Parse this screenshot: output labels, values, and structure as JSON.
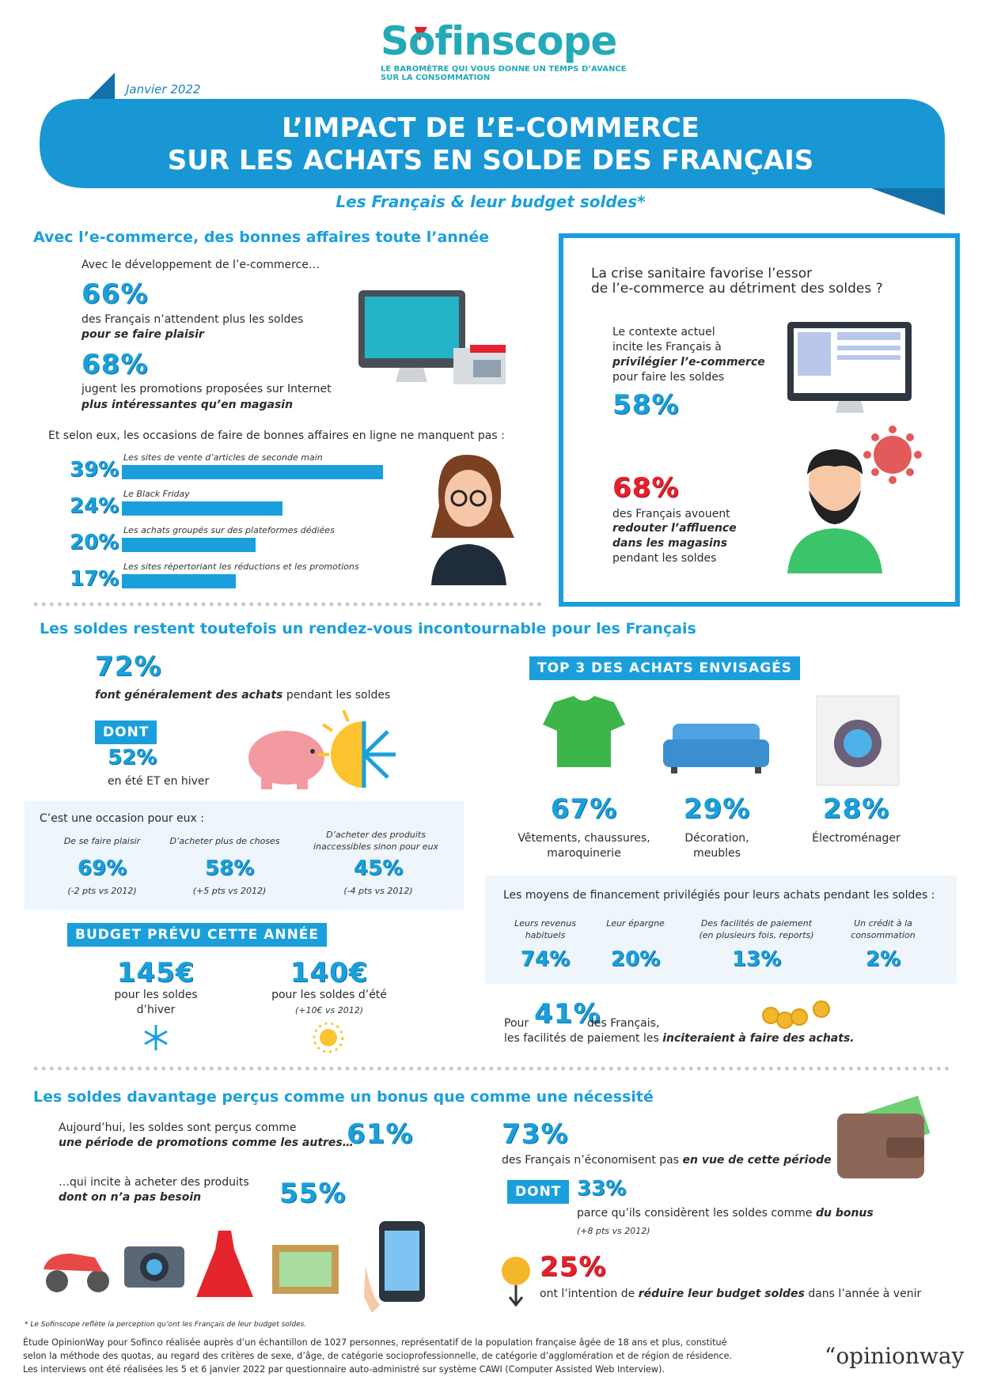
{
  "header": {
    "brand": "Sofinscope",
    "tagline": [
      "LE BAROMÈTRE QUI VOUS DONNE UN TEMPS D’AVANCE",
      "SUR LA CONSOMMATION"
    ],
    "date": "Janvier 2022",
    "title": [
      "L’IMPACT DE L’E-COMMERCE",
      "SUR LES ACHATS EN SOLDE DES FRANÇAIS"
    ],
    "subtitle": "Les Français & leur budget soldes*"
  },
  "section1": {
    "heading": "Avec l’e-commerce, des bonnes affaires toute l’année",
    "intro": "Avec le développement de l’e-commerce…",
    "stats": [
      {
        "value": "66%",
        "text": "des Français n’attendent plus les soldes",
        "emphasis": "pour se faire plaisir"
      },
      {
        "value": "68%",
        "text": "jugent les promotions proposées sur Internet",
        "emphasis": "plus intéressantes qu’en magasin"
      }
    ],
    "online_intro": "Et selon eux, les occasions de faire de bonnes affaires en ligne ne manquent pas :"
  },
  "chart_data": {
    "type": "bar",
    "orientation": "horizontal",
    "categories": [
      "Les sites de vente d’articles de seconde main",
      "Le Black Friday",
      "Les achats groupés sur des plateformes dédiées",
      "Les sites répertoriant les réductions et les promotions"
    ],
    "values": [
      39,
      24,
      20,
      17
    ],
    "value_labels": [
      "39%",
      "24%",
      "20%",
      "17%"
    ],
    "color": "#1a9fdc"
  },
  "box": {
    "title": [
      "La crise sanitaire favorise l’essor",
      "de l’e-commerce au détriment des soldes ?"
    ],
    "stat1": {
      "lines": [
        "Le contexte actuel",
        "incite les Français à"
      ],
      "emphasis": "privilégier l’e-commerce",
      "after": "pour faire les soldes",
      "value": "58%"
    },
    "stat2": {
      "value": "68%",
      "text": "des Français avouent",
      "emphasis": [
        "redouter l’affluence",
        "dans les magasins"
      ],
      "after": "pendant les soldes"
    }
  },
  "section2": {
    "heading": "Les soldes restent toutefois un rendez-vous incontournable pour les Français",
    "stat": {
      "value": "72%",
      "emphasis": "font généralement des achats",
      "text": "pendant les soldes"
    },
    "dont": {
      "label": "DONT",
      "value": "52%",
      "text": "en été ET en hiver"
    },
    "occasion": {
      "title": "C’est une occasion pour eux :",
      "items": [
        {
          "label": "De se faire plaisir",
          "value": "69%",
          "note": "(-2 pts vs 2012)"
        },
        {
          "label": "D’acheter plus de choses",
          "value": "58%",
          "note": "(+5 pts vs 2012)"
        },
        {
          "label": "D’acheter des produits inaccessibles sinon pour eux",
          "value": "45%",
          "note": "(-4 pts vs 2012)"
        }
      ]
    },
    "budget": {
      "title": "BUDGET PRÉVU CETTE ANNÉE",
      "items": [
        {
          "value": "145€",
          "label": [
            "pour les soldes",
            "d’hiver"
          ]
        },
        {
          "value": "140€",
          "label": [
            "pour les soldes d’été"
          ],
          "note": "(+10€ vs 2012)"
        }
      ]
    },
    "top3": {
      "title": "TOP 3 DES ACHATS ENVISAGÉS",
      "items": [
        {
          "value": "67%",
          "label": [
            "Vêtements, chaussures,",
            "maroquinerie"
          ]
        },
        {
          "value": "29%",
          "label": [
            "Décoration,",
            "meubles"
          ]
        },
        {
          "value": "28%",
          "label": [
            "Électroménager"
          ]
        }
      ]
    },
    "financing": {
      "title": "Les moyens de financement privilégiés pour leurs achats pendant les soldes :",
      "items": [
        {
          "label": [
            "Leurs revenus",
            "habituels"
          ],
          "value": "74%"
        },
        {
          "label": [
            "Leur épargne"
          ],
          "value": "20%"
        },
        {
          "label": [
            "Des facilités de paiement",
            "(en plusieurs fois, reports)"
          ],
          "value": "13%"
        },
        {
          "label": [
            "Un crédit à la",
            "consommation"
          ],
          "value": "2%"
        }
      ]
    },
    "payment": {
      "prefix": "Pour",
      "value": "41%",
      "text": "des Français,",
      "line2": "les facilités de paiement les",
      "emphasis": "inciteraient à faire des achats."
    }
  },
  "section3": {
    "heading": "Les soldes davantage perçus comme un bonus que comme une nécessité",
    "perception": [
      {
        "text": "Aujourd’hui, les soldes sont perçus comme",
        "emphasis": "une période de promotions comme les autres…",
        "value": "61%"
      },
      {
        "text": "…qui incite à acheter des produits",
        "emphasis": "dont on n’a pas besoin",
        "value": "55%"
      }
    ],
    "savings": {
      "value": "73%",
      "text": "des Français n’économisent pas",
      "emphasis": "en vue de cette période",
      "dont": "DONT",
      "sub_value": "33%",
      "sub_text": "parce qu’ils considèrent les soldes comme",
      "sub_emphasis": "du bonus",
      "note": "(+8 pts vs 2012)"
    },
    "reduce": {
      "value": "25%",
      "text": "ont l’intention de",
      "emphasis": "réduire leur budget soldes",
      "after": "dans l’année à venir"
    }
  },
  "footer": {
    "footnote": "* Le Sofinscope reflète la perception qu’ont les Français de leur budget soldes.",
    "study": [
      "Étude OpinionWay pour Sofinco réalisée auprès d’un échantillon de 1027 personnes, représentatif de la population française âgée de 18 ans et plus, constitué",
      "selon la méthode des quotas, au regard des critères de sexe, d’âge, de catégorie socioprofessionnelle, de catégorie d’agglomération et de région de résidence.",
      "Les interviews ont été réalisées les 5 et 6 janvier 2022 par questionnaire auto-administré sur système CAWI (Computer Assisted Web Interview)."
    ],
    "brand": "“opinionway"
  }
}
